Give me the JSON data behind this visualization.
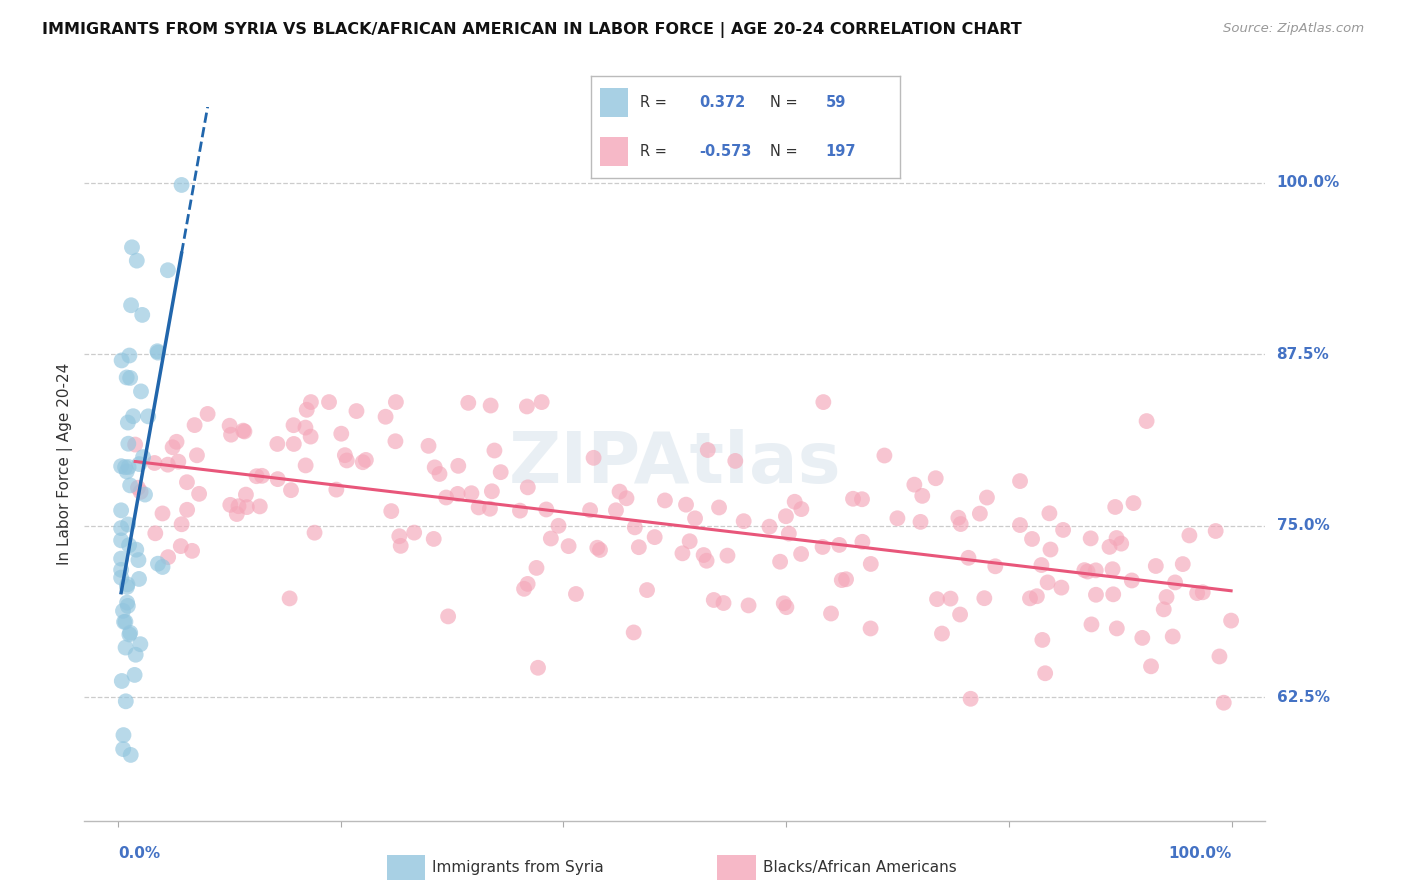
{
  "title": "IMMIGRANTS FROM SYRIA VS BLACK/AFRICAN AMERICAN IN LABOR FORCE | AGE 20-24 CORRELATION CHART",
  "source": "Source: ZipAtlas.com",
  "ylabel": "In Labor Force | Age 20-24",
  "ytick_labels": [
    "100.0%",
    "87.5%",
    "75.0%",
    "62.5%"
  ],
  "ytick_values": [
    1.0,
    0.875,
    0.75,
    0.625
  ],
  "ylim": [
    0.535,
    1.055
  ],
  "xlim": [
    -0.003,
    0.103
  ],
  "R_syria": 0.372,
  "N_syria": 59,
  "R_black": -0.573,
  "N_black": 197,
  "color_syria": "#92c5de",
  "color_black": "#f4a7b9",
  "color_trendline_syria": "#2166ac",
  "color_trendline_black": "#e8567a",
  "color_axis_labels": "#4472c4",
  "color_grid": "#cccccc",
  "watermark": "ZIPAtlas"
}
